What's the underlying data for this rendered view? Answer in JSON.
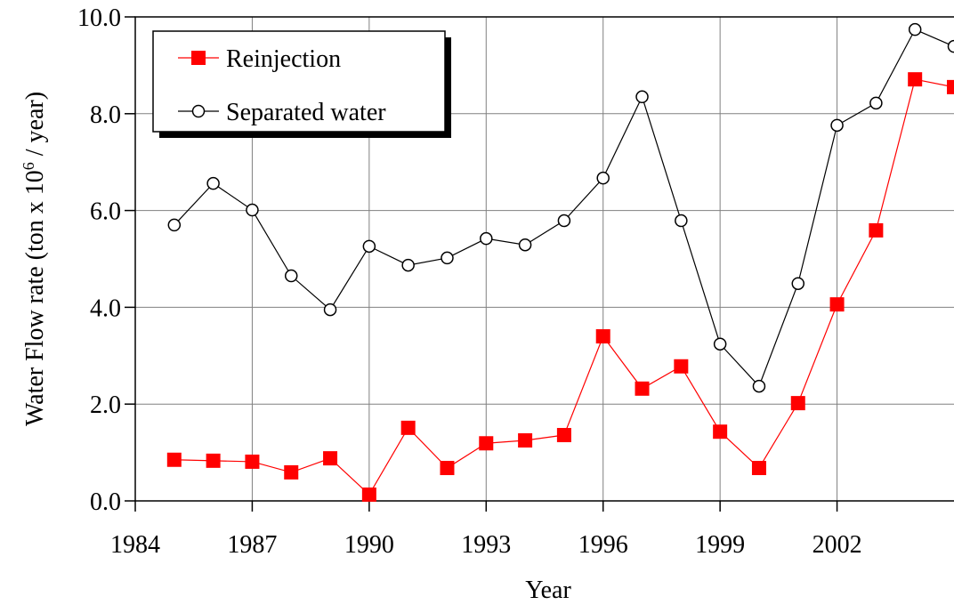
{
  "chart_data": {
    "type": "line",
    "xlabel": "Year",
    "ylabel_parts": [
      "Water Flow rate (ton x 10",
      "6",
      " / year)"
    ],
    "x": [
      1985,
      1986,
      1987,
      1988,
      1989,
      1990,
      1991,
      1992,
      1993,
      1994,
      1995,
      1996,
      1997,
      1998,
      1999,
      2000,
      2001,
      2002,
      2003,
      2004,
      2005
    ],
    "series": [
      {
        "name": "Reinjection",
        "color": "#ff0000",
        "marker": "square",
        "values": [
          0.85,
          0.83,
          0.81,
          0.59,
          0.88,
          0.13,
          1.51,
          0.68,
          1.19,
          1.25,
          1.36,
          3.4,
          2.32,
          2.78,
          1.43,
          0.68,
          2.02,
          4.06,
          5.59,
          8.71,
          8.55
        ]
      },
      {
        "name": "Separated water",
        "color": "#000000",
        "marker": "circle",
        "values": [
          5.7,
          6.56,
          6.01,
          4.65,
          3.95,
          5.26,
          4.87,
          5.02,
          5.42,
          5.29,
          5.79,
          6.67,
          8.35,
          5.79,
          3.24,
          2.37,
          4.49,
          7.76,
          8.22,
          9.74,
          9.39
        ]
      }
    ],
    "xlim": [
      1984,
      2005
    ],
    "xticks": [
      1984,
      1987,
      1990,
      1993,
      1996,
      1999,
      2002
    ],
    "ylim": [
      0,
      10
    ],
    "yticks": [
      {
        "value": 0,
        "label": "0.0"
      },
      {
        "value": 2,
        "label": "2.0"
      },
      {
        "value": 4,
        "label": "4.0"
      },
      {
        "value": 6,
        "label": "6.0"
      },
      {
        "value": 8,
        "label": "8.0"
      },
      {
        "value": 10,
        "label": "10.0"
      }
    ],
    "grid": true,
    "legend": "upper left"
  }
}
